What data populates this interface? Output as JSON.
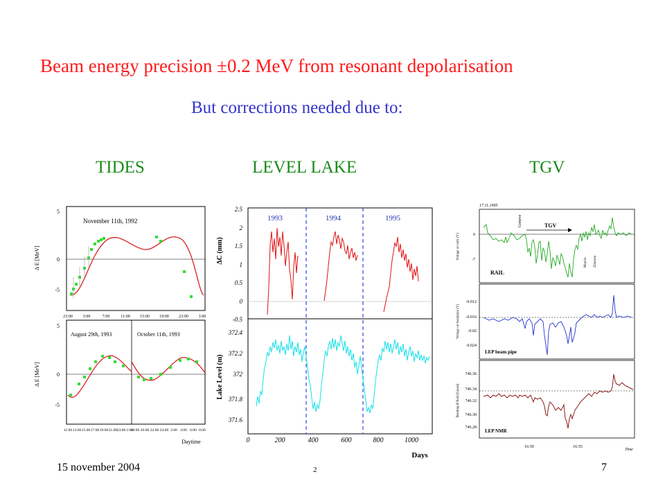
{
  "slide": {
    "title": "Beam energy precision ±0.2 MeV from resonant depolarisation",
    "subtitle": "But corrections needed due to:",
    "headings": [
      "TIDES",
      "LEVEL LAKE",
      "TGV"
    ],
    "footer_date": "15 november 2004",
    "footer_center": "2",
    "page_number": "7"
  },
  "colors": {
    "title": "#ff1a1a",
    "subtitle": "#3333cc",
    "heading": "#1a8a1a"
  },
  "tides": {
    "top_label": "November 11th, 1992",
    "top_ylabel": "Δ E [MeV]",
    "top_yticks": [
      "5",
      "0",
      "-5"
    ],
    "top_xticks": [
      "23:00",
      "3:00",
      "7:00",
      "11:00",
      "15:00",
      "19:00",
      "23:00",
      "3:00"
    ],
    "bottom_left_label": "August 29th, 1993",
    "bottom_right_label": "October 11th, 1993",
    "bottom_ylabel": "Δ E [MeV]",
    "bottom_yticks": [
      "5",
      "0",
      "-5"
    ],
    "bottom_xticks_left": [
      "11:00",
      "13:00",
      "15:00",
      "17:00",
      "19:00",
      "21:00",
      "23:00",
      "1:00"
    ],
    "bottom_xticks_right": [
      "18:00",
      "20:00",
      "22:00",
      "24:00",
      "2:00",
      "4:00",
      "6:00",
      "8:00"
    ],
    "xlabel": "Daytime"
  },
  "lake": {
    "years": [
      "1993",
      "1994",
      "1995"
    ],
    "top_ylabel": "ΔC (mm)",
    "top_yticks": [
      "2.5",
      "2",
      "1.5",
      "1",
      "0.5",
      "0",
      "-0.5"
    ],
    "bottom_ylabel": "Lake Level (m)",
    "bottom_yticks": [
      "372.4",
      "372.2",
      "372",
      "371.8",
      "371.6"
    ],
    "xticks": [
      "0",
      "200",
      "400",
      "600",
      "800",
      "1000"
    ],
    "xlabel": "Days"
  },
  "tgv": {
    "date": "17.11.1995",
    "geneve": "Geneve",
    "tgv_label": "TGV",
    "meyrin": "Meyrin",
    "zimeysa": "Zimeysa",
    "p1_label": "RAIL",
    "p1_ylabel": "Voltage on rails [V]",
    "p1_yticks": [
      "0",
      "-7"
    ],
    "p2_label": "LEP beam pipe",
    "p2_ylabel": "Voltage on beampipe [V]",
    "p2_yticks": [
      "-0.012",
      "-0.016",
      "-0.02",
      "-0.024"
    ],
    "p3_label": "LEP NMR",
    "p3_ylabel": "Bending B field [Gauss]",
    "p3_yticks": [
      "746.36",
      "746.34",
      "746.32",
      "746.30",
      "746.28"
    ],
    "xticks": [
      "16:50",
      "16:55"
    ],
    "xlabel": "Time"
  }
}
